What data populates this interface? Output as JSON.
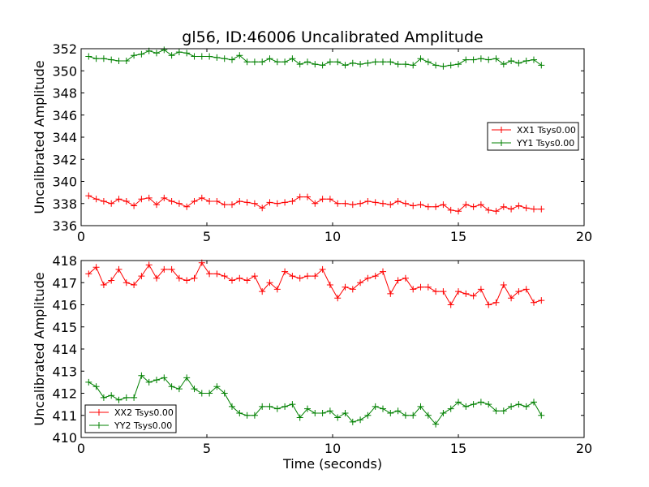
{
  "chart_data": [
    {
      "type": "line",
      "title": "gl56, ID:46006 Uncalibrated Amplitude",
      "xlabel": "",
      "ylabel": "Uncalibrated Amplitude",
      "xlim": [
        0,
        20
      ],
      "ylim": [
        336,
        352
      ],
      "xticks": [
        0,
        5,
        10,
        15,
        20
      ],
      "yticks": [
        336,
        338,
        340,
        342,
        344,
        346,
        348,
        350,
        352
      ],
      "grid": false,
      "legend_position": "center-right",
      "x": [
        0.3,
        0.6,
        0.9,
        1.2,
        1.5,
        1.8,
        2.1,
        2.4,
        2.7,
        3.0,
        3.3,
        3.6,
        3.9,
        4.2,
        4.5,
        4.8,
        5.1,
        5.4,
        5.7,
        6.0,
        6.3,
        6.6,
        6.9,
        7.2,
        7.5,
        7.8,
        8.1,
        8.4,
        8.7,
        9.0,
        9.3,
        9.6,
        9.9,
        10.2,
        10.5,
        10.8,
        11.1,
        11.4,
        11.7,
        12.0,
        12.3,
        12.6,
        12.9,
        13.2,
        13.5,
        13.8,
        14.1,
        14.4,
        14.7,
        15.0,
        15.3,
        15.6,
        15.9,
        16.2,
        16.5,
        16.8,
        17.1,
        17.4,
        17.7,
        18.0,
        18.3
      ],
      "series": [
        {
          "name": "XX1 Tsys0.00",
          "color": "#ff0000",
          "values": [
            338.7,
            338.4,
            338.2,
            338.0,
            338.4,
            338.2,
            337.8,
            338.4,
            338.5,
            337.9,
            338.5,
            338.2,
            338.0,
            337.7,
            338.2,
            338.5,
            338.2,
            338.2,
            337.9,
            337.9,
            338.2,
            338.1,
            338.0,
            337.6,
            338.1,
            338.0,
            338.1,
            338.2,
            338.6,
            338.6,
            338.0,
            338.4,
            338.4,
            338.0,
            338.0,
            337.9,
            338.0,
            338.2,
            338.1,
            338.0,
            337.9,
            338.2,
            338.0,
            337.8,
            337.9,
            337.7,
            337.7,
            337.9,
            337.4,
            337.3,
            337.9,
            337.7,
            337.9,
            337.4,
            337.3,
            337.7,
            337.5,
            337.8,
            337.6,
            337.5,
            337.5
          ]
        },
        {
          "name": "YY1 Tsys0.00",
          "color": "#008000",
          "values": [
            351.3,
            351.1,
            351.1,
            351.0,
            350.9,
            350.9,
            351.4,
            351.5,
            351.8,
            351.6,
            351.9,
            351.4,
            351.7,
            351.6,
            351.3,
            351.3,
            351.3,
            351.2,
            351.1,
            351.0,
            351.4,
            350.8,
            350.8,
            350.8,
            351.1,
            350.8,
            350.8,
            351.1,
            350.6,
            350.8,
            350.6,
            350.5,
            350.8,
            350.8,
            350.5,
            350.7,
            350.6,
            350.7,
            350.8,
            350.8,
            350.8,
            350.6,
            350.6,
            350.5,
            351.1,
            350.8,
            350.5,
            350.4,
            350.5,
            350.6,
            351.0,
            351.0,
            351.1,
            351.0,
            351.1,
            350.6,
            350.9,
            350.7,
            350.9,
            351.0,
            350.5
          ]
        }
      ]
    },
    {
      "type": "line",
      "title": "",
      "xlabel": "Time (seconds)",
      "ylabel": "Uncalibrated Amplitude",
      "xlim": [
        0,
        20
      ],
      "ylim": [
        410,
        418
      ],
      "xticks": [
        0,
        5,
        10,
        15,
        20
      ],
      "yticks": [
        410,
        411,
        412,
        413,
        414,
        415,
        416,
        417,
        418
      ],
      "grid": false,
      "legend_position": "lower-left",
      "x": [
        0.3,
        0.6,
        0.9,
        1.2,
        1.5,
        1.8,
        2.1,
        2.4,
        2.7,
        3.0,
        3.3,
        3.6,
        3.9,
        4.2,
        4.5,
        4.8,
        5.1,
        5.4,
        5.7,
        6.0,
        6.3,
        6.6,
        6.9,
        7.2,
        7.5,
        7.8,
        8.1,
        8.4,
        8.7,
        9.0,
        9.3,
        9.6,
        9.9,
        10.2,
        10.5,
        10.8,
        11.1,
        11.4,
        11.7,
        12.0,
        12.3,
        12.6,
        12.9,
        13.2,
        13.5,
        13.8,
        14.1,
        14.4,
        14.7,
        15.0,
        15.3,
        15.6,
        15.9,
        16.2,
        16.5,
        16.8,
        17.1,
        17.4,
        17.7,
        18.0,
        18.3
      ],
      "series": [
        {
          "name": "XX2 Tsys0.00",
          "color": "#ff0000",
          "values": [
            417.4,
            417.7,
            416.9,
            417.1,
            417.6,
            417.0,
            416.9,
            417.3,
            417.8,
            417.2,
            417.6,
            417.6,
            417.2,
            417.1,
            417.2,
            417.9,
            417.4,
            417.4,
            417.3,
            417.1,
            417.2,
            417.1,
            417.3,
            416.6,
            417.0,
            416.7,
            417.5,
            417.3,
            417.2,
            417.3,
            417.3,
            417.6,
            416.9,
            416.3,
            416.8,
            416.7,
            417.0,
            417.2,
            417.3,
            417.5,
            416.5,
            417.1,
            417.2,
            416.7,
            416.8,
            416.8,
            416.6,
            416.6,
            416.0,
            416.6,
            416.5,
            416.4,
            416.7,
            416.0,
            416.1,
            416.9,
            416.3,
            416.6,
            416.7,
            416.1,
            416.2
          ]
        },
        {
          "name": "YY2 Tsys0.00",
          "color": "#008000",
          "values": [
            412.5,
            412.3,
            411.8,
            411.9,
            411.7,
            411.8,
            411.8,
            412.8,
            412.5,
            412.6,
            412.7,
            412.3,
            412.2,
            412.7,
            412.2,
            412.0,
            412.0,
            412.3,
            412.0,
            411.4,
            411.1,
            411.0,
            411.0,
            411.4,
            411.4,
            411.3,
            411.4,
            411.5,
            410.9,
            411.3,
            411.1,
            411.1,
            411.2,
            410.9,
            411.1,
            410.7,
            410.8,
            411.0,
            411.4,
            411.3,
            411.1,
            411.2,
            411.0,
            411.0,
            411.4,
            411.0,
            410.6,
            411.1,
            411.3,
            411.6,
            411.4,
            411.5,
            411.6,
            411.5,
            411.2,
            411.2,
            411.4,
            411.5,
            411.4,
            411.6,
            411.0
          ]
        }
      ]
    }
  ]
}
